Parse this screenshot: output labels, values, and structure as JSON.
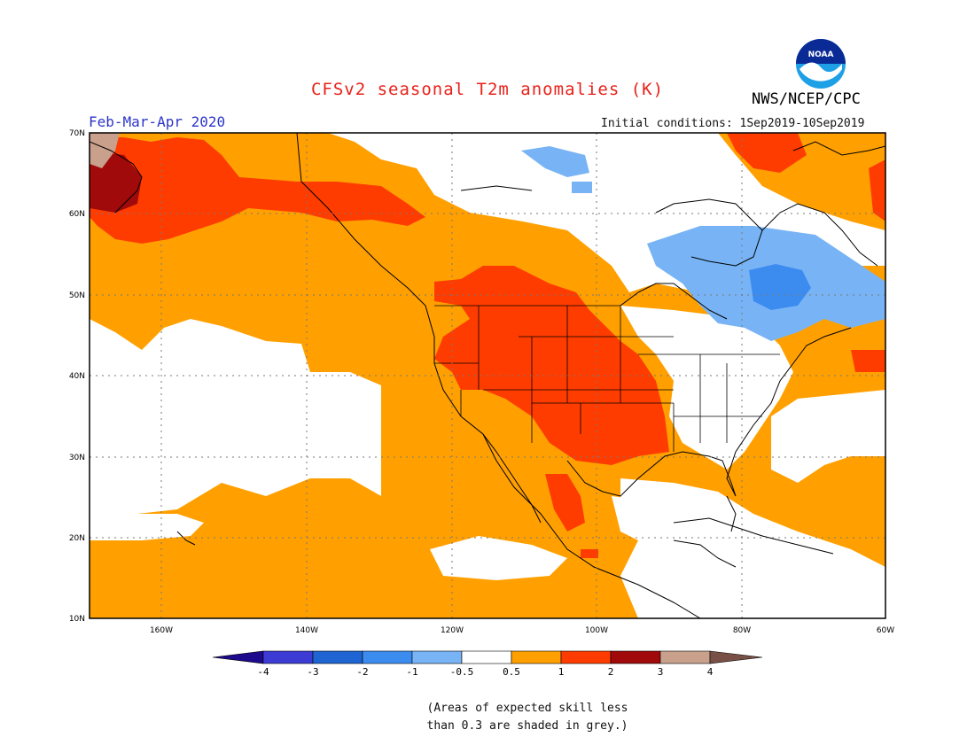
{
  "title": "CFSv2 seasonal T2m anomalies (K)",
  "season": "Feb-Mar-Apr 2020",
  "agency": "NWS/NCEP/CPC",
  "logo_text": "NOAA",
  "initial_conditions": "Initial conditions: 1Sep2019-10Sep2019",
  "lat_labels": [
    "70N",
    "60N",
    "50N",
    "40N",
    "30N",
    "20N",
    "10N"
  ],
  "lon_labels": [
    "160W",
    "140W",
    "120W",
    "100W",
    "80W",
    "60W"
  ],
  "colorbar": {
    "ticks": [
      "-4",
      "-3",
      "-2",
      "-1",
      "-0.5",
      "0.5",
      "1",
      "2",
      "3",
      "4"
    ],
    "colors": [
      "#1e0a8c",
      "#3c3cd4",
      "#1e64d2",
      "#3c8cf0",
      "#78b4f5",
      "#ffffff",
      "#ffa000",
      "#ff3c00",
      "#a00a0a",
      "#c8a08c",
      "#785046"
    ]
  },
  "notes": [
    "(Areas of expected skill less",
    "than 0.3 are shaded in grey.)"
  ]
}
